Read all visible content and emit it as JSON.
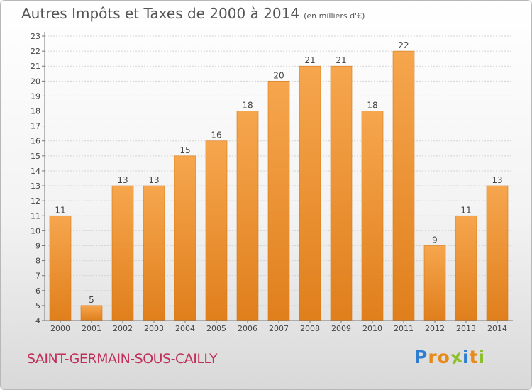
{
  "header": {
    "title": "Autres Impôts et Taxes de 2000 à 2014",
    "unit": "(en milliers d'€)"
  },
  "footer": {
    "commune": "SAINT-GERMAIN-SOUS-CAILLY",
    "logo_letters": [
      "P",
      "r",
      "o",
      "x",
      "i",
      "t",
      "i"
    ]
  },
  "colors": {
    "bar_top": "#f6a64e",
    "bar_bottom": "#e07f1c",
    "commune_text": "#c0305a",
    "logo": [
      "#2e7dd1",
      "#e88a1a",
      "#e88a1a",
      "#8bbf2b",
      "#2e7dd1",
      "#e88a1a",
      "#8bbf2b"
    ]
  },
  "chart_data": {
    "type": "bar",
    "title": "Autres Impôts et Taxes de 2000 à 2014",
    "subtitle": "(en milliers d'€)",
    "xlabel": "",
    "ylabel": "",
    "categories": [
      "2000",
      "2001",
      "2002",
      "2003",
      "2004",
      "2005",
      "2006",
      "2007",
      "2008",
      "2009",
      "2010",
      "2011",
      "2012",
      "2013",
      "2014"
    ],
    "values": [
      11,
      5,
      13,
      13,
      15,
      16,
      18,
      20,
      21,
      21,
      18,
      22,
      9,
      11,
      13
    ],
    "ylim": [
      4,
      23
    ],
    "yticks": [
      4,
      5,
      6,
      7,
      8,
      9,
      10,
      11,
      12,
      13,
      14,
      15,
      16,
      17,
      18,
      19,
      20,
      21,
      22,
      23
    ],
    "grid": true,
    "data_labels": true
  }
}
